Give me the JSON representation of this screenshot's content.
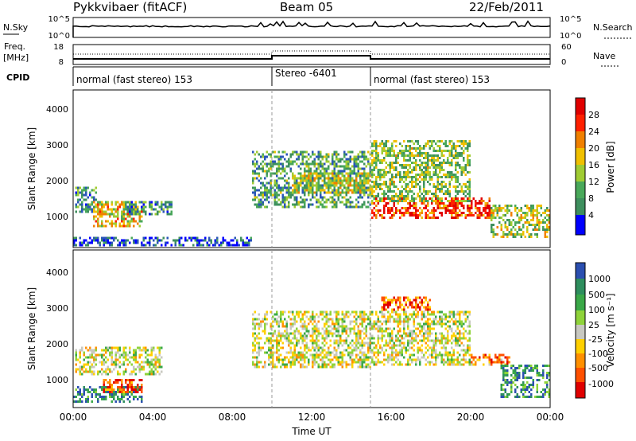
{
  "header": {
    "station": "Pykkvibaer (fitACF)",
    "beam": "Beam 05",
    "date": "22/Feb/2011"
  },
  "strips": {
    "nsky": {
      "label": "N.Sky",
      "ticks": [
        "10^5",
        "10^0"
      ],
      "right_label": "N.Search",
      "right_ticks": [
        "10^5",
        "10^0"
      ]
    },
    "freq": {
      "label_line1": "Freq.",
      "label_line2": "[MHz]",
      "ticks": [
        "18",
        "8"
      ],
      "right_label": "Nave",
      "right_ticks": [
        "60",
        "0"
      ]
    },
    "cpid": {
      "label": "CPID",
      "segments": [
        {
          "start_h": 0,
          "end_h": 10,
          "label": "normal (fast stereo) 153"
        },
        {
          "start_h": 10,
          "end_h": 15,
          "label": "Stereo -6401"
        },
        {
          "start_h": 15,
          "end_h": 24,
          "label": "normal (fast stereo) 153"
        }
      ]
    }
  },
  "colors": {
    "power_scale": [
      "#0000ff",
      "#2a56b8",
      "#3e8f5e",
      "#49a85a",
      "#a0cc33",
      "#f0c000",
      "#f08000",
      "#ff2000",
      "#e00000"
    ],
    "velocity_scale": [
      "#2b4fb0",
      "#2e8e5e",
      "#3aa848",
      "#8fd33a",
      "#c8c8c0",
      "#ffd000",
      "#ff9000",
      "#ff5000",
      "#e00000"
    ]
  },
  "chart_data": [
    {
      "type": "heatmap",
      "name": "power-panel",
      "title": "",
      "xlabel": "",
      "ylabel": "Slant Range [km]",
      "x_ticks": [
        "00:00",
        "04:00",
        "08:00",
        "12:00",
        "16:00",
        "20:00",
        "00:00"
      ],
      "x_range_hours": [
        0,
        24
      ],
      "y_range_km": [
        200,
        4600
      ],
      "y_ticks": [
        "1000",
        "2000",
        "3000",
        "4000"
      ],
      "colorbar": {
        "label": "Power [dB]",
        "range": [
          0,
          32
        ],
        "ticks": [
          "4",
          "8",
          "12",
          "16",
          "20",
          "24",
          "28"
        ]
      },
      "echo_regions": [
        {
          "start_h": 0.1,
          "end_h": 1.2,
          "range_km": [
            1200,
            1900
          ],
          "level": 0.3
        },
        {
          "start_h": 1.0,
          "end_h": 3.5,
          "range_km": [
            800,
            1500
          ],
          "level": 0.6
        },
        {
          "start_h": 2.5,
          "end_h": 5.0,
          "range_km": [
            1100,
            1500
          ],
          "level": 0.3
        },
        {
          "start_h": 0.0,
          "end_h": 9.0,
          "range_km": [
            250,
            500
          ],
          "level": 0.15
        },
        {
          "start_h": 9.0,
          "end_h": 15.0,
          "range_km": [
            1300,
            2900
          ],
          "level": 0.35
        },
        {
          "start_h": 11.0,
          "end_h": 15.0,
          "range_km": [
            1700,
            2300
          ],
          "level": 0.55
        },
        {
          "start_h": 15.0,
          "end_h": 21.0,
          "range_km": [
            1000,
            1600
          ],
          "level": 0.85
        },
        {
          "start_h": 15.0,
          "end_h": 20.0,
          "range_km": [
            1500,
            3200
          ],
          "level": 0.45
        },
        {
          "start_h": 21.0,
          "end_h": 24.0,
          "range_km": [
            500,
            1400
          ],
          "level": 0.5
        }
      ]
    },
    {
      "type": "heatmap",
      "name": "velocity-panel",
      "title": "",
      "xlabel": "Time UT",
      "ylabel": "Slant Range [km]",
      "x_ticks": [
        "00:00",
        "04:00",
        "08:00",
        "12:00",
        "16:00",
        "20:00",
        "00:00"
      ],
      "x_range_hours": [
        0,
        24
      ],
      "y_range_km": [
        200,
        4600
      ],
      "y_ticks": [
        "1000",
        "2000",
        "3000",
        "4000"
      ],
      "colorbar": {
        "label": "Velocity [m s⁻¹]",
        "ticks": [
          "1000",
          "500",
          "100",
          "25",
          "-25",
          "-100",
          "-500",
          "-1000"
        ]
      },
      "echo_regions": [
        {
          "start_h": 0.1,
          "end_h": 4.5,
          "range_km": [
            1100,
            1900
          ],
          "level": 0.5
        },
        {
          "start_h": 0.0,
          "end_h": 3.5,
          "range_km": [
            350,
            800
          ],
          "level": 0.15
        },
        {
          "start_h": 1.5,
          "end_h": 3.5,
          "range_km": [
            600,
            1000
          ],
          "level": 0.85
        },
        {
          "start_h": 9.0,
          "end_h": 15.0,
          "range_km": [
            1300,
            2900
          ],
          "level": 0.5
        },
        {
          "start_h": 15.0,
          "end_h": 20.0,
          "range_km": [
            1400,
            2900
          ],
          "level": 0.5
        },
        {
          "start_h": 15.5,
          "end_h": 18.0,
          "range_km": [
            2900,
            3300
          ],
          "level": 0.8
        },
        {
          "start_h": 20.0,
          "end_h": 22.0,
          "range_km": [
            1400,
            1700
          ],
          "level": 0.75
        },
        {
          "start_h": 21.5,
          "end_h": 24.0,
          "range_km": [
            500,
            1400
          ],
          "level": 0.2
        }
      ]
    }
  ]
}
